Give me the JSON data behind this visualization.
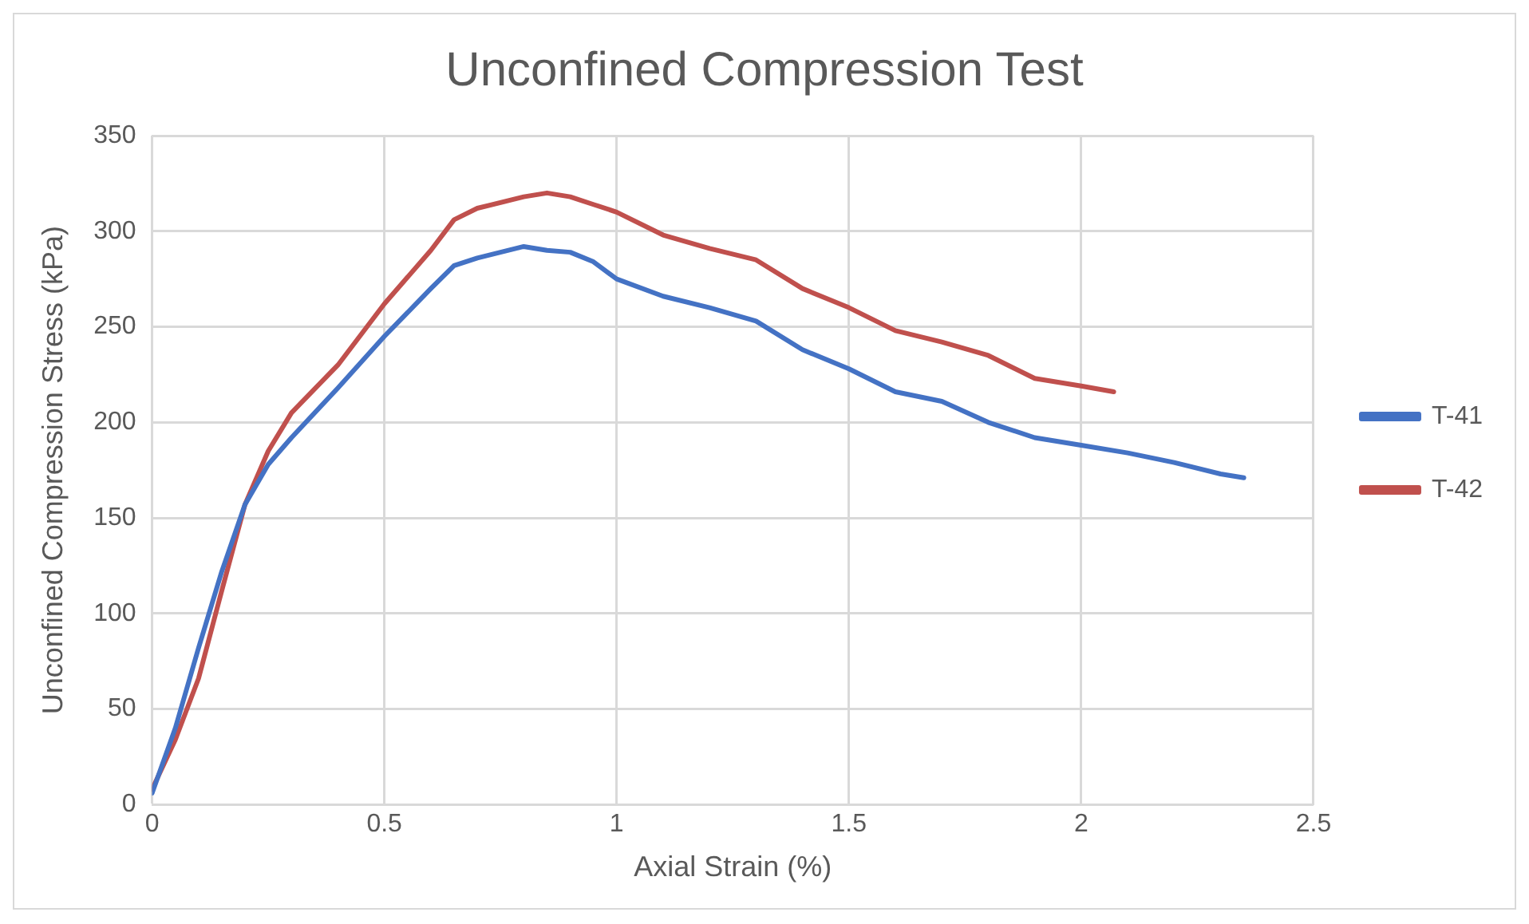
{
  "chart_data": {
    "type": "line",
    "title": "Unconfined Compression Test",
    "xlabel": "Axial Strain (%)",
    "ylabel": "Unconfined Compression Stress (kPa)",
    "xlim": [
      0,
      2.5
    ],
    "xticks": [
      0,
      0.5,
      1,
      1.5,
      2,
      2.5
    ],
    "ylim": [
      0,
      350
    ],
    "yticks": [
      0,
      50,
      100,
      150,
      200,
      250,
      300,
      350
    ],
    "grid": true,
    "legend": "right",
    "marker": "none",
    "line_style": "solid",
    "series": [
      {
        "name": "T-41",
        "color": "#4472c4",
        "x": [
          0,
          0.05,
          0.1,
          0.15,
          0.2,
          0.25,
          0.3,
          0.4,
          0.5,
          0.6,
          0.65,
          0.7,
          0.8,
          0.85,
          0.9,
          0.95,
          1.0,
          1.1,
          1.2,
          1.3,
          1.4,
          1.5,
          1.6,
          1.7,
          1.8,
          1.9,
          2.0,
          2.1,
          2.2,
          2.3,
          2.35
        ],
        "values": [
          6,
          40,
          82,
          122,
          157,
          178,
          192,
          218,
          245,
          270,
          282,
          286,
          292,
          290,
          289,
          284,
          275,
          266,
          260,
          253,
          238,
          228,
          216,
          211,
          200,
          192,
          188,
          184,
          179,
          173,
          171
        ]
      },
      {
        "name": "T-42",
        "color": "#c0504d",
        "x": [
          0,
          0.05,
          0.1,
          0.15,
          0.2,
          0.25,
          0.3,
          0.4,
          0.5,
          0.6,
          0.65,
          0.7,
          0.8,
          0.85,
          0.9,
          0.95,
          1.0,
          1.1,
          1.2,
          1.3,
          1.4,
          1.5,
          1.6,
          1.7,
          1.8,
          1.9,
          2.0,
          2.07
        ],
        "values": [
          8,
          34,
          66,
          112,
          157,
          185,
          205,
          230,
          262,
          290,
          306,
          312,
          318,
          320,
          318,
          314,
          310,
          298,
          291,
          285,
          270,
          260,
          248,
          242,
          235,
          223,
          219,
          216
        ]
      }
    ]
  }
}
